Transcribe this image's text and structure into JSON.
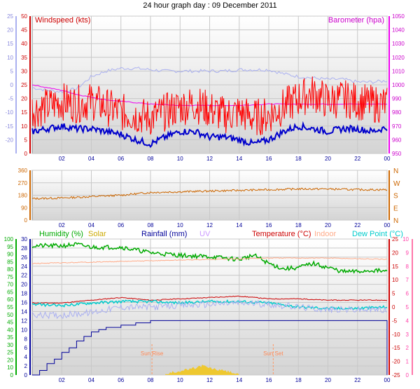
{
  "title": "24 hour graph day : 09 December 2011",
  "chart_data": [
    {
      "id": "wind-baro",
      "type": "line",
      "x_labels": [
        "02",
        "04",
        "06",
        "08",
        "10",
        "12",
        "14",
        "16",
        "18",
        "20",
        "22",
        "00"
      ],
      "left_title": "Windspeed (kts)",
      "right_title": "Barometer (hpa)",
      "left_ticks": [
        "0",
        "5",
        "10",
        "15",
        "20",
        "25",
        "30",
        "35",
        "40",
        "45",
        "50"
      ],
      "right_ticks": [
        "950",
        "960",
        "970",
        "980",
        "990",
        "1000",
        "1010",
        "1020",
        "1030",
        "1040",
        "1050"
      ],
      "far_left_ticks": [
        "-20",
        "-15",
        "-10",
        "-5",
        "0",
        "5",
        "10",
        "15",
        "20",
        "25"
      ],
      "ylim_left": [
        0,
        50
      ],
      "ylim_right": [
        950,
        1050
      ],
      "ylim_far_left": [
        -25,
        25
      ],
      "series": [
        {
          "axis": "far_left",
          "color": "#aab0f0",
          "x": [
            0,
            1,
            2,
            3,
            4,
            5,
            6,
            7,
            8,
            9,
            10,
            11,
            12,
            13,
            14,
            15,
            16,
            17,
            18,
            19,
            20,
            21,
            22,
            23,
            24
          ],
          "values": [
            -1,
            -2,
            -2.5,
            -1.5,
            3,
            5,
            6,
            6,
            5.5,
            5,
            5,
            5,
            5,
            5,
            5.5,
            5.5,
            5.5,
            4,
            3,
            2.5,
            2,
            2,
            1,
            1,
            1.5
          ]
        },
        {
          "axis": "right",
          "color": "#ee00ee",
          "x": [
            0,
            1,
            2,
            3,
            4,
            5,
            6,
            7,
            8,
            9,
            10,
            11,
            12,
            13,
            14,
            15,
            16,
            17,
            18,
            19,
            20,
            21,
            22,
            23,
            24
          ],
          "values": [
            1000,
            998,
            996,
            993,
            991,
            989,
            988,
            987,
            986,
            985.5,
            985,
            985,
            985,
            985,
            985,
            985.5,
            986,
            986,
            986,
            986,
            986,
            986,
            986,
            986,
            986
          ]
        },
        {
          "axis": "left",
          "color": "#ff0000",
          "x": [
            0,
            1,
            2,
            3,
            4,
            5,
            6,
            7,
            8,
            9,
            10,
            11,
            12,
            13,
            14,
            15,
            16,
            17,
            18,
            19,
            20,
            21,
            22,
            23,
            24
          ],
          "values": [
            16,
            17,
            19,
            18,
            19,
            17,
            15,
            14,
            13,
            15,
            17,
            18,
            16,
            14,
            15,
            13,
            14,
            17,
            20,
            22,
            19,
            20,
            19,
            18,
            18
          ]
        },
        {
          "axis": "left",
          "color": "#0000cc",
          "x": [
            0,
            1,
            2,
            3,
            4,
            5,
            6,
            7,
            8,
            9,
            10,
            11,
            12,
            13,
            14,
            15,
            16,
            17,
            18,
            19,
            20,
            21,
            22,
            23,
            24
          ],
          "values": [
            8,
            9,
            10,
            9,
            9,
            8,
            7,
            5,
            3.5,
            6,
            8,
            8,
            6,
            6,
            5,
            3.5,
            5,
            8,
            10,
            9,
            8,
            9,
            9,
            8,
            9.5
          ]
        }
      ]
    },
    {
      "id": "direction",
      "type": "line",
      "x_labels": [
        "02",
        "04",
        "06",
        "08",
        "10",
        "12",
        "14",
        "16",
        "18",
        "20",
        "22",
        "00"
      ],
      "left_ticks": [
        "0",
        "90",
        "180",
        "270",
        "360"
      ],
      "right_ticks": [
        "N",
        "E",
        "S",
        "W",
        "N"
      ],
      "ylim": [
        0,
        360
      ],
      "series": [
        {
          "color": "#cc6600",
          "x": [
            0,
            2,
            4,
            6,
            8,
            10,
            12,
            14,
            16,
            18,
            20,
            22,
            24
          ],
          "values": [
            155,
            160,
            170,
            180,
            200,
            205,
            210,
            215,
            220,
            225,
            225,
            220,
            220
          ]
        }
      ]
    },
    {
      "id": "thermo",
      "type": "line",
      "x_labels": [
        "02",
        "04",
        "06",
        "08",
        "10",
        "12",
        "14",
        "16",
        "18",
        "20",
        "22",
        "00"
      ],
      "legend": [
        "Humidity (%)",
        "Solar",
        "Rainfall (mm)",
        "UV",
        "Temperature (°C)",
        "Indoor",
        "Dew Point (°C)"
      ],
      "legend_colors": [
        "#00aa00",
        "#ccaa00",
        "#000099",
        "#cc99ff",
        "#cc0000",
        "#ffaa88",
        "#00cccc"
      ],
      "humidity_ticks": [
        "0",
        "10",
        "20",
        "25",
        "30",
        "35",
        "40",
        "45",
        "50",
        "55",
        "60",
        "65",
        "70",
        "75",
        "80",
        "85",
        "90",
        "95",
        "100"
      ],
      "rain_ticks": [
        "0",
        "2",
        "4",
        "6",
        "8",
        "10",
        "12",
        "14",
        "16",
        "18",
        "20",
        "22",
        "24",
        "26",
        "28",
        "30"
      ],
      "temp_ticks": [
        "-25",
        "-20",
        "-15",
        "-10",
        "-5",
        "0",
        "5",
        "10",
        "15",
        "20",
        "25"
      ],
      "uv_ticks": [
        "0",
        "1",
        "2",
        "3",
        "4",
        "5",
        "6",
        "7",
        "8",
        "9",
        "10"
      ],
      "annotations": [
        "Sun Rise",
        "Sun Set"
      ],
      "annotation_hours": [
        8.1,
        16.3
      ],
      "ylim_humidity": [
        0,
        100
      ],
      "ylim_temp": [
        -25,
        25
      ],
      "ylim_rain": [
        0,
        30
      ],
      "series": [
        {
          "axis": "humidity",
          "color": "#00aa00",
          "x": [
            0,
            2,
            3,
            3.5,
            4,
            6,
            7,
            8,
            10,
            12,
            14,
            15,
            16,
            17,
            18,
            19,
            20,
            21,
            22,
            23,
            24
          ],
          "values": [
            95,
            95,
            96,
            95,
            94,
            94,
            92,
            90,
            88,
            87,
            85,
            88,
            82,
            78,
            79,
            82,
            79,
            76,
            76,
            77,
            76
          ]
        },
        {
          "axis": "temp",
          "color": "#ffaa88",
          "x": [
            0,
            4,
            8,
            12,
            16,
            20,
            24
          ],
          "values": [
            16,
            16.5,
            17,
            17.5,
            18,
            18,
            17.5
          ]
        },
        {
          "axis": "temp",
          "color": "#cc0000",
          "x": [
            0,
            2,
            4,
            6,
            8,
            10,
            12,
            14,
            16,
            18,
            20,
            22,
            24
          ],
          "values": [
            1.5,
            1.5,
            2.5,
            3.5,
            2.5,
            3,
            3.5,
            4,
            3,
            3,
            2.5,
            2.5,
            2.5
          ]
        },
        {
          "axis": "temp",
          "color": "#00cccc",
          "x": [
            0,
            2,
            4,
            6,
            8,
            10,
            12,
            14,
            16,
            18,
            20,
            22,
            24
          ],
          "values": [
            1,
            0.5,
            1.5,
            2,
            2,
            1.5,
            2,
            2,
            1.5,
            0,
            -0.5,
            -0.5,
            0
          ]
        },
        {
          "axis": "temp",
          "color": "#aab0f0",
          "x": [
            0,
            2,
            4,
            6,
            8,
            10,
            12,
            14,
            16,
            18,
            20,
            22,
            24
          ],
          "values": [
            -3,
            -3,
            -2,
            0,
            0,
            0.5,
            1,
            1.5,
            1,
            0,
            -1,
            -1,
            -1
          ]
        },
        {
          "axis": "rain",
          "color": "#000099",
          "x": [
            0,
            0.5,
            1,
            1.5,
            2,
            2.5,
            3,
            3.5,
            4,
            4.5,
            5,
            6,
            7,
            8,
            10,
            12,
            14,
            16,
            18,
            20,
            22,
            23.9
          ],
          "values": [
            0,
            1,
            2.5,
            3.5,
            5,
            6,
            7.5,
            8.5,
            9.5,
            10,
            10.5,
            11,
            11.5,
            12,
            12,
            12,
            12,
            12,
            12,
            12,
            12,
            12
          ]
        },
        {
          "axis": "humidity",
          "color": "#eec830",
          "x": [
            9,
            9.5,
            10,
            10.5,
            11,
            11.5,
            12,
            12.5,
            13,
            13.5,
            14
          ],
          "values": [
            0,
            2,
            3,
            4,
            5,
            7,
            5,
            4,
            3,
            2,
            0
          ]
        }
      ]
    }
  ]
}
